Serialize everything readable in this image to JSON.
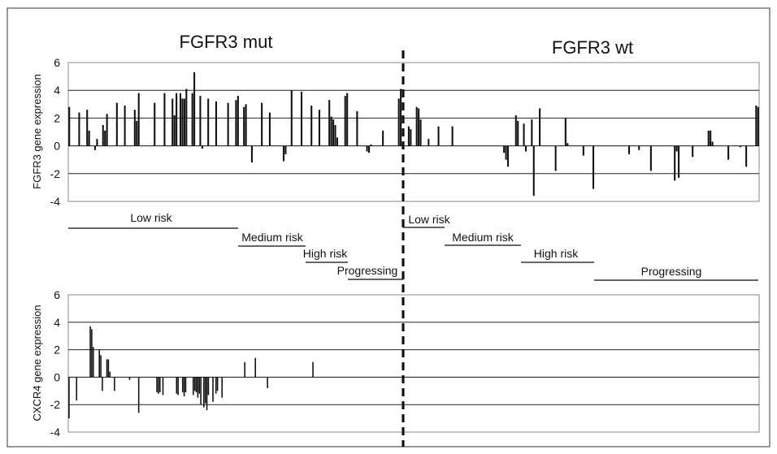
{
  "chart_data": [
    {
      "type": "bar",
      "ylabel": "FGFR3 gene expression",
      "ylim": [
        -4,
        6
      ],
      "yticks": [
        -4,
        -2,
        0,
        2,
        4,
        6
      ],
      "grid": true,
      "values": [
        2.8,
        0,
        0,
        0,
        0,
        2.4,
        0,
        0,
        0,
        2.6,
        1.1,
        0,
        0,
        -0.3,
        0.5,
        0,
        0,
        1.5,
        1.1,
        2.3,
        0,
        0,
        0,
        0,
        3.1,
        0,
        0,
        0,
        2.9,
        0,
        0,
        0,
        0,
        2.6,
        1.8,
        3.8,
        0,
        0,
        0,
        0,
        0,
        0,
        0,
        3.1,
        0,
        0,
        0,
        0,
        3.8,
        0,
        0,
        0,
        3.4,
        2.2,
        3.8,
        0,
        3.8,
        3.4,
        3.4,
        4.1,
        0,
        0,
        3.8,
        5.3,
        0,
        0,
        3.6,
        -0.2,
        0,
        0,
        3.4,
        0,
        0,
        0,
        3.2,
        0,
        0,
        0,
        0,
        0,
        3.1,
        0,
        0,
        0,
        3.3,
        3.6,
        0,
        0,
        2.8,
        3.0,
        0,
        0,
        -1.2,
        0,
        0,
        0,
        0,
        3.1,
        0,
        0,
        0,
        2.4,
        0,
        0,
        0,
        0,
        0,
        0,
        -1.1,
        -0.6,
        0,
        0,
        4.0,
        0,
        0,
        0,
        0,
        3.9,
        0,
        0,
        0,
        0,
        2.9,
        0,
        0,
        0,
        2.6,
        0,
        0,
        0,
        0,
        3.3,
        2.1,
        1.9,
        1.5,
        0.6,
        0,
        0,
        0,
        3.6,
        3.8,
        0,
        0,
        0,
        0,
        2.5,
        0,
        0,
        0,
        0,
        -0.4,
        -0.5,
        0.1,
        0,
        0,
        0,
        0,
        0,
        1.1,
        0,
        0,
        0,
        0,
        0,
        0,
        0,
        3.4,
        4.1,
        0,
        0,
        0,
        1.4,
        1.2,
        0,
        0,
        2.8,
        2.7,
        1.9,
        0,
        0,
        0,
        0.5,
        0,
        0,
        0,
        0,
        1.4,
        0,
        0,
        0,
        0,
        0,
        0,
        1.4,
        0,
        0,
        0,
        0,
        0,
        0,
        0,
        0,
        0,
        0,
        0,
        0,
        0,
        0,
        0,
        0,
        0,
        0,
        0,
        0,
        0,
        0,
        0,
        0,
        0,
        -0.5,
        -1.0,
        -1.5,
        0,
        0,
        0,
        2.2,
        1.8,
        0,
        0,
        1.6,
        -0.4,
        0,
        0,
        1.9,
        -3.6,
        0,
        0,
        2.7,
        0,
        0,
        0,
        0,
        0,
        0,
        0,
        -1.8,
        0,
        0,
        0,
        0,
        2.0,
        0.2,
        0,
        0,
        0,
        0,
        0,
        0,
        0,
        -0.7,
        0,
        0,
        0,
        0,
        -3.1,
        0,
        0,
        0,
        0,
        0,
        0,
        0,
        0,
        0,
        0,
        0,
        0,
        0,
        0,
        0,
        0,
        0,
        -0.6,
        0,
        0,
        0,
        0,
        -0.3,
        0,
        0,
        0,
        0,
        0,
        -1.8,
        0,
        0,
        0,
        0,
        0,
        0,
        0,
        0,
        0,
        0,
        0,
        -2.5,
        -0.4,
        -2.3,
        0,
        0,
        0,
        0,
        0,
        0,
        -0.8,
        0,
        0,
        0,
        0,
        0,
        0,
        0,
        1.1,
        1.1,
        0.3,
        0,
        0,
        0,
        0,
        0,
        0,
        0,
        -1.0,
        0,
        0,
        0,
        0,
        0,
        -0.1,
        0,
        0,
        -1.5,
        0,
        0,
        0,
        0,
        2.9,
        2.8
      ]
    },
    {
      "type": "bar",
      "ylabel": "CXCR4 gene expression",
      "ylim": [
        -4,
        6
      ],
      "yticks": [
        -4,
        -2,
        0,
        2,
        4,
        6
      ],
      "grid": true,
      "values": [
        -3.0,
        0,
        0,
        0,
        0,
        -1.7,
        0,
        0,
        0,
        0,
        0,
        0,
        0,
        0,
        3.7,
        3.5,
        2.2,
        0,
        0,
        0,
        2.0,
        1.6,
        -1.0,
        0,
        0,
        1.3,
        1.3,
        0.4,
        0,
        0,
        -1.0,
        0,
        0,
        0,
        0,
        0,
        0,
        0,
        0,
        0,
        -0.2,
        0,
        0,
        0,
        0,
        0,
        -2.6,
        0,
        0,
        0,
        0,
        0,
        0,
        0,
        0,
        0,
        0,
        0,
        -1.1,
        -1.2,
        -1.1,
        0,
        -1.3,
        0,
        0,
        0,
        0,
        0,
        0,
        0,
        0,
        -1.2,
        -1.3,
        0,
        0,
        -1.1,
        -1.4,
        -1.1,
        0,
        0,
        0,
        0,
        -1.3,
        -1.0,
        -1.1,
        -1.5,
        -1.2,
        -2.0,
        0,
        -2.2,
        -1.9,
        -2.4,
        -1.3,
        0,
        0,
        -1.8,
        0,
        -1.2,
        -1.0,
        0,
        0,
        -1.5,
        0,
        0,
        0,
        0,
        0,
        0,
        0,
        0,
        0,
        0,
        0,
        0,
        0,
        0,
        1.1,
        0,
        0,
        0,
        0,
        0,
        0,
        1.4,
        0,
        0,
        0,
        0,
        0,
        0,
        0,
        -0.8,
        0,
        0,
        0,
        0,
        0,
        0,
        0,
        0,
        0,
        0,
        0,
        0,
        0,
        0,
        0,
        0,
        0,
        0,
        0,
        0,
        0,
        0,
        0,
        0,
        0,
        0,
        0,
        0,
        0,
        1.1,
        0,
        0,
        0,
        0,
        0,
        0,
        0,
        0,
        0,
        0,
        0,
        0,
        0,
        0,
        0,
        0,
        0,
        0,
        0,
        0,
        0,
        0,
        0,
        0,
        0,
        0,
        0,
        0,
        0,
        0,
        0,
        0,
        0,
        0,
        0,
        0,
        0,
        0,
        0,
        0,
        0,
        0,
        0,
        0,
        0,
        0,
        0,
        0,
        0,
        0,
        0,
        0,
        0,
        0,
        0,
        0,
        0,
        0,
        0,
        0,
        0,
        0,
        0,
        0,
        0,
        0,
        0,
        0,
        0,
        0,
        0,
        0,
        0,
        0,
        0,
        0,
        0,
        0,
        0,
        0,
        0,
        0,
        0,
        0,
        0,
        0,
        0,
        0,
        0,
        0,
        0,
        0,
        0,
        0,
        0,
        0,
        0,
        0,
        0,
        0,
        0,
        0,
        0,
        0,
        0,
        0,
        0,
        0,
        0,
        0,
        0,
        0,
        0,
        0,
        0,
        0,
        0,
        0,
        0,
        0,
        0,
        0,
        0,
        0,
        0,
        0,
        0,
        0,
        0,
        0,
        0,
        0,
        0,
        0,
        0,
        0,
        0,
        0,
        0,
        0,
        0,
        0,
        0,
        0,
        0,
        0,
        0,
        0,
        0,
        0,
        0,
        0,
        0,
        0,
        0,
        0,
        0,
        0,
        0,
        0,
        0,
        0,
        0,
        0,
        0,
        0,
        0,
        0,
        0,
        0,
        0,
        0,
        0,
        0,
        0,
        0,
        0,
        0,
        0,
        0,
        0,
        0,
        0,
        0,
        0,
        0,
        0,
        0,
        0,
        0,
        0,
        0,
        0,
        0,
        0,
        0,
        0,
        0,
        0,
        0,
        0,
        0,
        0,
        0,
        0,
        0,
        0,
        0,
        0,
        0,
        0,
        0,
        0,
        0,
        0,
        0,
        0,
        0,
        0,
        0,
        0,
        0,
        0,
        0,
        0,
        0,
        0,
        0,
        0,
        0,
        0,
        0,
        0,
        0,
        0,
        0,
        0,
        0,
        0,
        0,
        0,
        0,
        0,
        0,
        0,
        0,
        0,
        0,
        0,
        0,
        0,
        0,
        0,
        0,
        0,
        0,
        0,
        0,
        0,
        0,
        0,
        0,
        0,
        0,
        0,
        0,
        0,
        0,
        0,
        0,
        0,
        0,
        0,
        0,
        0,
        0,
        0,
        0,
        0,
        0,
        0,
        0,
        0,
        0,
        0,
        0,
        0,
        0,
        0,
        0,
        0,
        0,
        0,
        0
      ]
    }
  ],
  "titles": {
    "left": "FGFR3 mut",
    "right": "FGFR3 wt"
  },
  "risk_groups": {
    "mut": [
      "Low risk",
      "Medium risk",
      "High risk",
      "Progressing"
    ],
    "wt": [
      "Low risk",
      "Medium risk",
      "High risk",
      "Progressing"
    ]
  }
}
